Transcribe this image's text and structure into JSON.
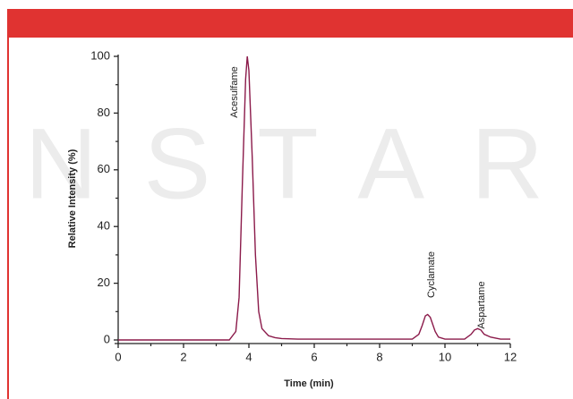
{
  "watermark": "ANSTAR",
  "chart_data": {
    "type": "line",
    "x_label": "Time (min)",
    "y_label": "Relative Intensity (%)",
    "annotations": [
      "Acesulfame",
      "Cyclamate",
      "Aspartame"
    ],
    "x": [
      0,
      3.4,
      3.6,
      3.7,
      3.8,
      3.9,
      3.95,
      4.0,
      4.1,
      4.2,
      4.3,
      4.4,
      4.6,
      4.8,
      5.0,
      5.5,
      9.0,
      9.2,
      9.3,
      9.4,
      9.47,
      9.55,
      9.7,
      9.8,
      10.0,
      10.6,
      10.8,
      10.9,
      11.0,
      11.1,
      11.2,
      11.4,
      11.7,
      12
    ],
    "series": [
      {
        "color": "#8b1a4a",
        "values": [
          0,
          0,
          3,
          15,
          55,
          92,
          100,
          95,
          65,
          30,
          10,
          4,
          1.5,
          0.8,
          0.5,
          0.3,
          0.3,
          2,
          5,
          8.5,
          9,
          8,
          3,
          1,
          0.3,
          0.3,
          2,
          3.5,
          4,
          3.5,
          2,
          1,
          0.3,
          0.3
        ]
      }
    ],
    "xlim": [
      0,
      12
    ],
    "ylim": [
      0,
      100
    ],
    "xticks": [
      0,
      2,
      4,
      6,
      8,
      10,
      12
    ],
    "yticks": [
      0,
      20,
      40,
      60,
      80,
      100
    ],
    "xminorticks": [
      1,
      3,
      5,
      7,
      9,
      11
    ],
    "yminorticks": [
      10,
      30,
      50,
      70,
      90
    ],
    "grid": false
  }
}
